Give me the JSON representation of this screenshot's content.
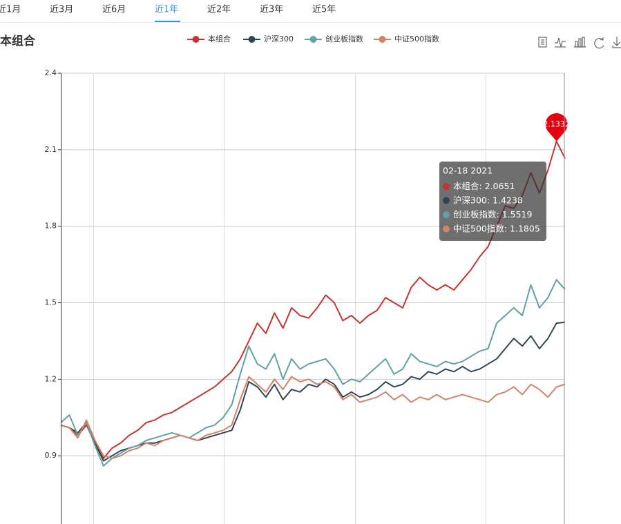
{
  "tabs": [
    {
      "label": "近1月",
      "active": false
    },
    {
      "label": "近3月",
      "active": false
    },
    {
      "label": "近6月",
      "active": false
    },
    {
      "label": "近1年",
      "active": true
    },
    {
      "label": "近2年",
      "active": false
    },
    {
      "label": "近3年",
      "active": false
    },
    {
      "label": "近5年",
      "active": false
    }
  ],
  "chart_data": {
    "type": "line",
    "title": "本组合",
    "ylim": [
      0.6,
      2.4
    ],
    "yticks": [
      0.9,
      1.2,
      1.5,
      1.8,
      2.1,
      2.4
    ],
    "grid": true,
    "tooltip_title": "02-18 2021",
    "series": [
      {
        "name": "本组合",
        "color": "#c23531",
        "values": [
          1.02,
          1.01,
          0.98,
          1.02,
          0.95,
          0.89,
          0.93,
          0.95,
          0.98,
          1.0,
          1.03,
          1.04,
          1.06,
          1.07,
          1.09,
          1.11,
          1.13,
          1.15,
          1.17,
          1.2,
          1.23,
          1.28,
          1.35,
          1.42,
          1.38,
          1.46,
          1.4,
          1.48,
          1.45,
          1.44,
          1.48,
          1.53,
          1.5,
          1.43,
          1.45,
          1.42,
          1.45,
          1.47,
          1.52,
          1.5,
          1.48,
          1.56,
          1.6,
          1.57,
          1.55,
          1.57,
          1.55,
          1.59,
          1.63,
          1.68,
          1.72,
          1.8,
          1.88,
          1.87,
          1.92,
          2.01,
          1.93,
          2.02,
          2.1332,
          2.0651
        ]
      },
      {
        "name": "沪深300",
        "color": "#2f4554",
        "values": [
          1.02,
          1.01,
          0.99,
          1.03,
          0.95,
          0.88,
          0.9,
          0.92,
          0.93,
          0.94,
          0.95,
          0.95,
          0.96,
          0.97,
          0.98,
          0.97,
          0.96,
          0.97,
          0.98,
          0.99,
          1.0,
          1.08,
          1.19,
          1.17,
          1.13,
          1.18,
          1.12,
          1.16,
          1.15,
          1.18,
          1.17,
          1.2,
          1.18,
          1.13,
          1.15,
          1.13,
          1.14,
          1.16,
          1.19,
          1.17,
          1.18,
          1.21,
          1.2,
          1.23,
          1.22,
          1.24,
          1.23,
          1.25,
          1.23,
          1.24,
          1.26,
          1.28,
          1.32,
          1.36,
          1.33,
          1.37,
          1.32,
          1.36,
          1.42,
          1.4238
        ]
      },
      {
        "name": "创业板指数",
        "color": "#61a0a8",
        "values": [
          1.03,
          1.06,
          0.98,
          1.03,
          0.94,
          0.86,
          0.89,
          0.91,
          0.93,
          0.94,
          0.96,
          0.97,
          0.98,
          0.99,
          0.98,
          0.97,
          0.99,
          1.01,
          1.02,
          1.05,
          1.1,
          1.22,
          1.33,
          1.26,
          1.24,
          1.3,
          1.2,
          1.28,
          1.24,
          1.26,
          1.27,
          1.28,
          1.24,
          1.18,
          1.2,
          1.19,
          1.22,
          1.25,
          1.28,
          1.22,
          1.24,
          1.3,
          1.27,
          1.26,
          1.25,
          1.27,
          1.26,
          1.27,
          1.29,
          1.31,
          1.32,
          1.42,
          1.45,
          1.48,
          1.45,
          1.57,
          1.48,
          1.52,
          1.59,
          1.5519
        ]
      },
      {
        "name": "中证500指数",
        "color": "#d48265",
        "values": [
          1.02,
          1.01,
          0.97,
          1.04,
          0.96,
          0.9,
          0.89,
          0.9,
          0.92,
          0.93,
          0.95,
          0.94,
          0.96,
          0.97,
          0.98,
          0.97,
          0.96,
          0.98,
          0.99,
          1.0,
          1.02,
          1.12,
          1.21,
          1.18,
          1.15,
          1.2,
          1.16,
          1.21,
          1.19,
          1.2,
          1.18,
          1.19,
          1.17,
          1.12,
          1.14,
          1.11,
          1.12,
          1.13,
          1.15,
          1.12,
          1.14,
          1.11,
          1.13,
          1.12,
          1.14,
          1.12,
          1.13,
          1.14,
          1.13,
          1.12,
          1.11,
          1.14,
          1.15,
          1.17,
          1.14,
          1.18,
          1.16,
          1.13,
          1.17,
          1.1805
        ]
      }
    ]
  }
}
